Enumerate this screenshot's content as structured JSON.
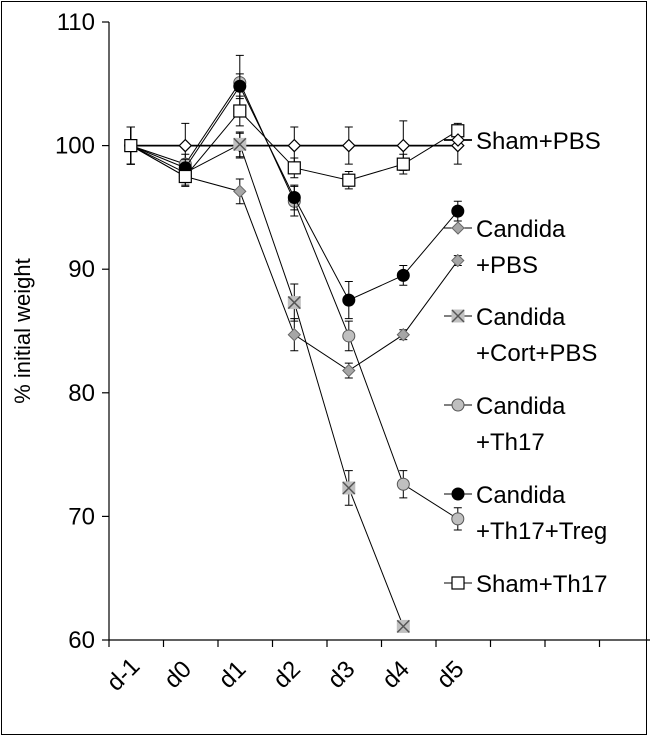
{
  "chart_data": {
    "type": "line",
    "title": "",
    "xlabel": "",
    "ylabel": "% initial weight",
    "categories": [
      "d-1",
      "d0",
      "d1",
      "d2",
      "d3",
      "d4",
      "d5"
    ],
    "ylim": [
      60,
      110
    ],
    "yticks": [
      60,
      70,
      80,
      90,
      100,
      110
    ],
    "grid": false,
    "legend_position": "right",
    "series": [
      {
        "name": "Sham+PBS",
        "legend_lines": [
          "Sham+PBS"
        ],
        "marker": "diamond-open",
        "line_width": 1.8,
        "values": [
          100,
          100,
          100,
          100,
          100,
          100,
          100
        ],
        "errors": [
          1.5,
          1.8,
          1.0,
          1.5,
          1.5,
          2.0,
          1.5
        ]
      },
      {
        "name": "Candida +PBS",
        "legend_lines": [
          "Candida",
          "+PBS"
        ],
        "marker": "diamond-gray",
        "line_width": 1,
        "values": [
          100,
          97.5,
          96.3,
          84.7,
          81.8,
          84.7,
          90.7
        ],
        "errors": [
          1.5,
          0.7,
          1.0,
          1.3,
          0.6,
          0.4,
          0.4
        ]
      },
      {
        "name": "Candida +Cort+PBS",
        "legend_lines": [
          "Candida",
          "+Cort+PBS"
        ],
        "marker": "x-box",
        "line_width": 1,
        "values": [
          100,
          97.8,
          100.1,
          87.3,
          72.3,
          61.1,
          null
        ],
        "errors": [
          1.5,
          0.8,
          1.0,
          1.5,
          1.4,
          0.3,
          null
        ]
      },
      {
        "name": "Candida +Th17",
        "legend_lines": [
          "Candida",
          "+Th17"
        ],
        "marker": "circle-gray",
        "line_width": 1,
        "values": [
          100,
          98.5,
          105.1,
          95.5,
          84.6,
          72.6,
          69.8
        ],
        "errors": [
          1.5,
          0.8,
          2.2,
          1.2,
          1.2,
          1.1,
          0.9
        ]
      },
      {
        "name": "Candida +Th17+Treg",
        "legend_lines": [
          "Candida",
          "+Th17+Treg"
        ],
        "marker": "circle-black",
        "line_width": 1,
        "values": [
          100,
          98.2,
          104.8,
          95.8,
          87.5,
          89.5,
          94.7
        ],
        "errors": [
          1.5,
          0.7,
          1.0,
          1.0,
          1.5,
          0.8,
          0.8
        ]
      },
      {
        "name": "Sham+Th17",
        "legend_lines": [
          "Sham+Th17"
        ],
        "marker": "square-open",
        "line_width": 1,
        "values": [
          100,
          97.5,
          102.8,
          98.2,
          97.2,
          98.5,
          101.2
        ],
        "errors": [
          1.5,
          0.8,
          1.2,
          0.8,
          0.7,
          0.8,
          0.6
        ]
      }
    ]
  }
}
